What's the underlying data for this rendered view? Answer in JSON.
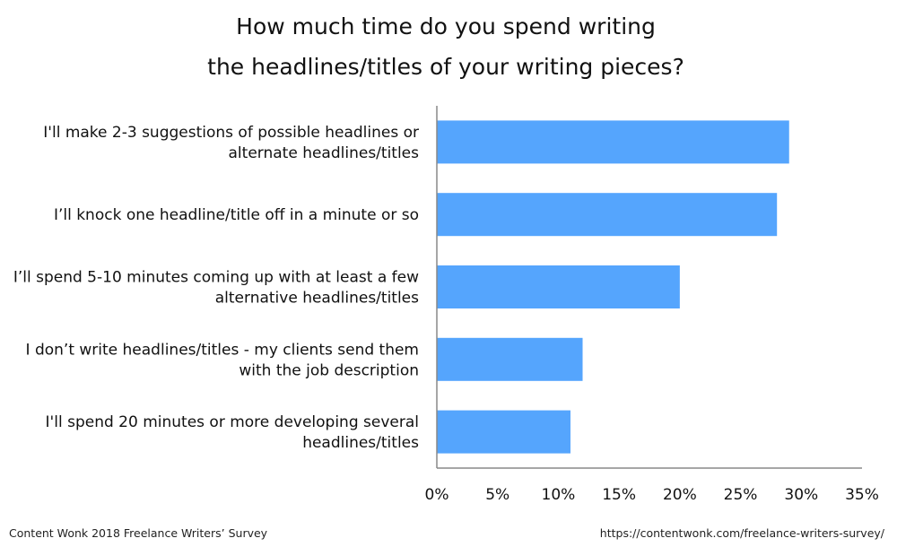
{
  "chart_data": {
    "type": "bar",
    "orientation": "horizontal",
    "title_lines": [
      "How much time do you spend writing",
      "the headlines/titles of your writing pieces?"
    ],
    "categories": [
      [
        "I'll make 2-3 suggestions of possible headlines or",
        "alternate headlines/titles"
      ],
      [
        "I’ll knock one headline/title off in a minute or so"
      ],
      [
        "I’ll spend 5-10 minutes coming up with at least a few",
        "alternative headlines/titles"
      ],
      [
        "I don’t write headlines/titles - my clients send them",
        "with the job description"
      ],
      [
        "I'll spend 20 minutes or more developing several",
        "headlines/titles"
      ]
    ],
    "values": [
      29,
      28,
      20,
      12,
      11
    ],
    "unit": "%",
    "xlim": [
      0,
      35
    ],
    "xticks": [
      0,
      5,
      10,
      15,
      20,
      25,
      30,
      35
    ],
    "bar_color": "#55a5fd",
    "grid": false
  },
  "footer": {
    "source": "Content Wonk 2018 Freelance Writers’ Survey",
    "url": "https://contentwonk.com/freelance-writers-survey/"
  }
}
